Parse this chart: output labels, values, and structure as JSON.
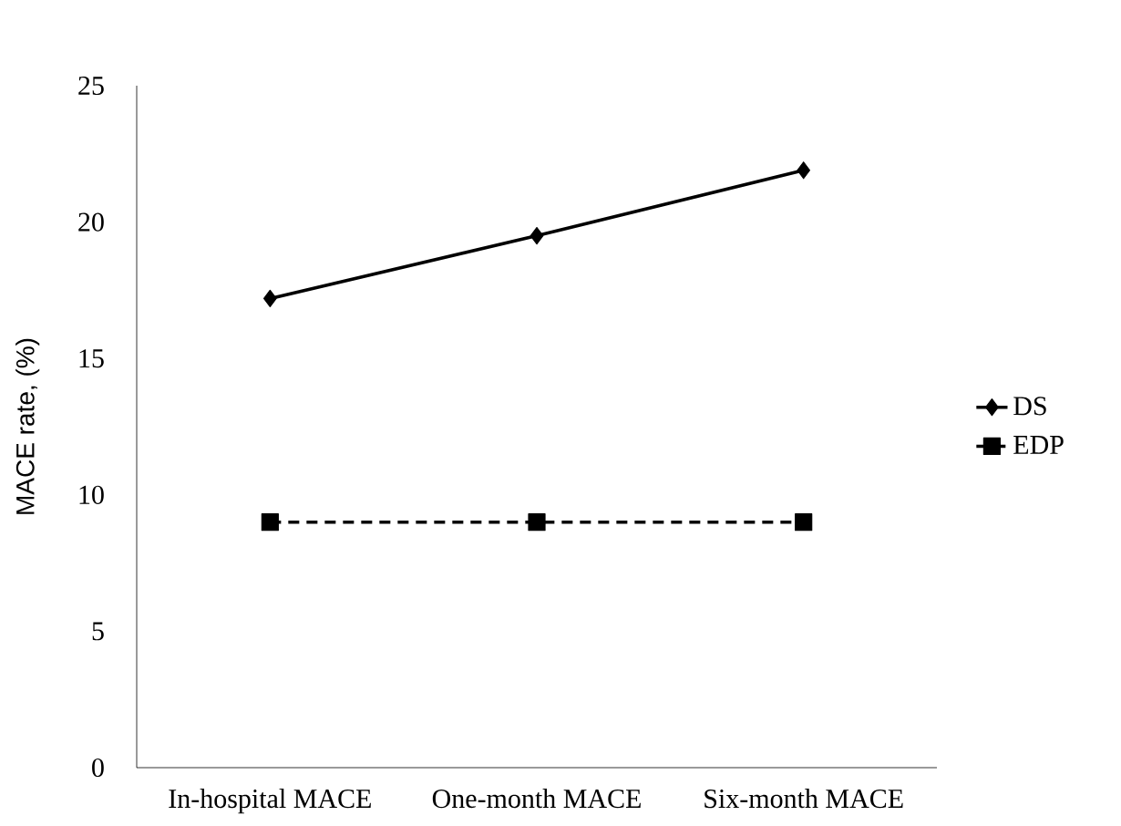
{
  "chart_data": {
    "type": "line",
    "ylabel": "MACE rate, (%)",
    "categories": [
      "In-hospital MACE",
      "One-month MACE",
      "Six-month MACE"
    ],
    "series": [
      {
        "name": "DS",
        "color": "#000000",
        "values": [
          17.2,
          19.5,
          21.9
        ],
        "marker": "diamond",
        "line_style": "solid"
      },
      {
        "name": "EDP",
        "color": "#000000",
        "values": [
          9.0,
          9.0,
          9.0
        ],
        "marker": "square",
        "line_style": "dashed"
      }
    ],
    "ylim": [
      0,
      25
    ],
    "yticks": [
      0,
      5,
      10,
      15,
      20,
      25
    ],
    "grid": false,
    "legend": "right"
  }
}
